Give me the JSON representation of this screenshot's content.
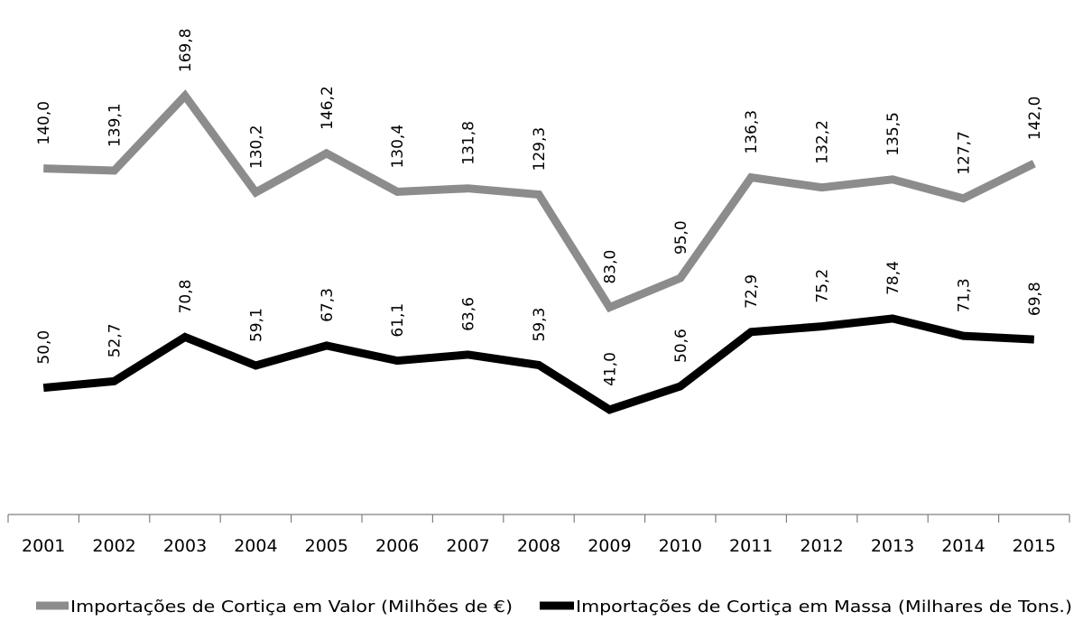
{
  "chart_data": {
    "type": "line",
    "title": "",
    "xlabel": "",
    "ylabel": "",
    "categories": [
      "2001",
      "2002",
      "2003",
      "2004",
      "2005",
      "2006",
      "2007",
      "2008",
      "2009",
      "2010",
      "2011",
      "2012",
      "2013",
      "2014",
      "2015"
    ],
    "series": [
      {
        "name": "Importações de Cortiça em Valor (Milhões de €)",
        "color": "#8c8c8c",
        "values": [
          140.0,
          139.1,
          169.8,
          130.2,
          146.2,
          130.4,
          131.8,
          129.3,
          83.0,
          95.0,
          136.3,
          132.2,
          135.5,
          127.7,
          142.0
        ],
        "labels": [
          "140,0",
          "139,1",
          "169,8",
          "130,2",
          "146,2",
          "130,4",
          "131,8",
          "129,3",
          "83,0",
          "95,0",
          "136,3",
          "132,2",
          "135,5",
          "127,7",
          "142,0"
        ]
      },
      {
        "name": "Importações de Cortiça em Massa (Milhares de Tons.)",
        "color": "#000000",
        "values": [
          50.0,
          52.7,
          70.8,
          59.1,
          67.3,
          61.1,
          63.6,
          59.3,
          41.0,
          50.6,
          72.9,
          75.2,
          78.4,
          71.3,
          69.8
        ],
        "labels": [
          "50,0",
          "52,7",
          "70,8",
          "59,1",
          "67,3",
          "61,1",
          "63,6",
          "59,3",
          "41,0",
          "50,6",
          "72,9",
          "75,2",
          "78,4",
          "71,3",
          "69,8"
        ]
      }
    ],
    "grid": false,
    "legend": "bottom"
  }
}
